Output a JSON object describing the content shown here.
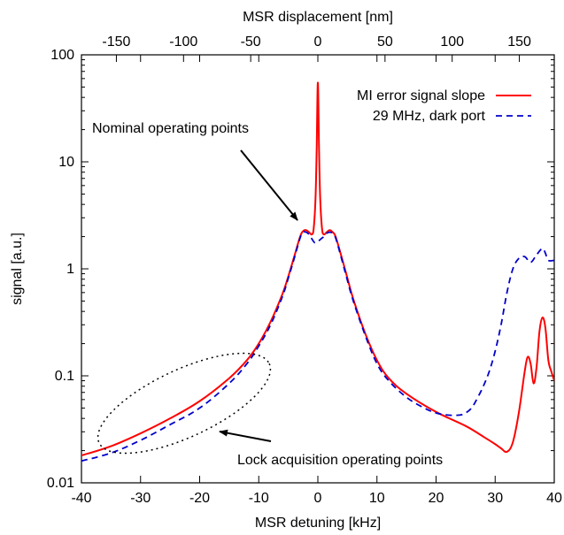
{
  "chart_data": {
    "type": "line",
    "xlabel": "MSR detuning [kHz]",
    "x2label": "MSR displacement [nm]",
    "ylabel": "signal [a.u.]",
    "xlim": [
      -40,
      40
    ],
    "x2lim": [
      -176,
      176
    ],
    "ylim": [
      0.01,
      100
    ],
    "yscale": "log",
    "grid": false,
    "legend_position": "top-right",
    "x_ticks": [
      -40,
      -30,
      -20,
      -10,
      0,
      10,
      20,
      30,
      40
    ],
    "x_tick_labels": [
      "-40",
      "-30",
      "-20",
      "-10",
      "0",
      "10",
      "20",
      "30",
      "40"
    ],
    "x2_ticks": [
      -150,
      -100,
      -50,
      0,
      50,
      100,
      150
    ],
    "x2_tick_labels": [
      "-150",
      "-100",
      "-50",
      "0",
      "50",
      "100",
      "150"
    ],
    "y_ticks": [
      0.01,
      0.1,
      1,
      10,
      100
    ],
    "y_tick_labels": [
      "0.01",
      "0.1",
      "1",
      "10",
      "100"
    ],
    "series": [
      {
        "name": "MI error signal slope",
        "color": "#ff0000",
        "style": "solid",
        "x": [
          -40,
          -35,
          -30,
          -25,
          -20,
          -15,
          -12,
          -10,
          -8,
          -6,
          -5,
          -4,
          -3,
          -2.5,
          -2,
          -1.5,
          -1,
          -0.7,
          -0.4,
          -0.2,
          0,
          0.2,
          0.4,
          0.7,
          1,
          1.5,
          2,
          2.5,
          3,
          4,
          5,
          6,
          8,
          10,
          12,
          15,
          20,
          25,
          28,
          30,
          31,
          32,
          33,
          34,
          35,
          35.5,
          36,
          36.5,
          37,
          37.5,
          38,
          38.5,
          39,
          39.5,
          40
        ],
        "y": [
          0.018,
          0.022,
          0.029,
          0.04,
          0.058,
          0.095,
          0.14,
          0.2,
          0.32,
          0.58,
          0.85,
          1.3,
          2.0,
          2.25,
          2.3,
          2.2,
          2.1,
          2.4,
          4.5,
          13,
          55,
          13,
          4.5,
          2.4,
          2.1,
          2.2,
          2.3,
          2.2,
          2.0,
          1.3,
          0.82,
          0.52,
          0.25,
          0.14,
          0.095,
          0.068,
          0.046,
          0.034,
          0.027,
          0.023,
          0.021,
          0.0195,
          0.024,
          0.045,
          0.11,
          0.15,
          0.13,
          0.085,
          0.12,
          0.26,
          0.35,
          0.28,
          0.14,
          0.11,
          0.09
        ]
      },
      {
        "name": "29 MHz, dark port",
        "color": "#0000cc",
        "style": "dashed",
        "x": [
          -40,
          -35,
          -30,
          -25,
          -20,
          -15,
          -12,
          -10,
          -8,
          -6,
          -5,
          -4,
          -3,
          -2.5,
          -2,
          -1.5,
          -1,
          -0.5,
          0,
          0.5,
          1,
          1.5,
          2,
          2.5,
          3,
          4,
          5,
          6,
          8,
          10,
          12,
          15,
          18,
          20,
          22,
          24,
          25,
          26,
          27,
          28,
          29,
          30,
          31,
          32,
          33,
          34,
          35,
          36,
          37,
          38,
          38.5,
          39,
          40
        ],
        "y": [
          0.016,
          0.019,
          0.025,
          0.035,
          0.05,
          0.085,
          0.13,
          0.19,
          0.3,
          0.55,
          0.82,
          1.25,
          1.95,
          2.2,
          2.2,
          2.1,
          1.9,
          1.75,
          1.8,
          1.9,
          2.0,
          2.15,
          2.2,
          2.15,
          1.95,
          1.25,
          0.78,
          0.5,
          0.24,
          0.13,
          0.09,
          0.063,
          0.05,
          0.045,
          0.043,
          0.043,
          0.045,
          0.05,
          0.062,
          0.08,
          0.11,
          0.17,
          0.3,
          0.6,
          1.0,
          1.25,
          1.3,
          1.15,
          1.35,
          1.55,
          1.4,
          1.2,
          1.2
        ]
      }
    ],
    "annotations": [
      {
        "text": "Nominal operating points"
      },
      {
        "text": "Lock acquisition operating points"
      }
    ]
  }
}
